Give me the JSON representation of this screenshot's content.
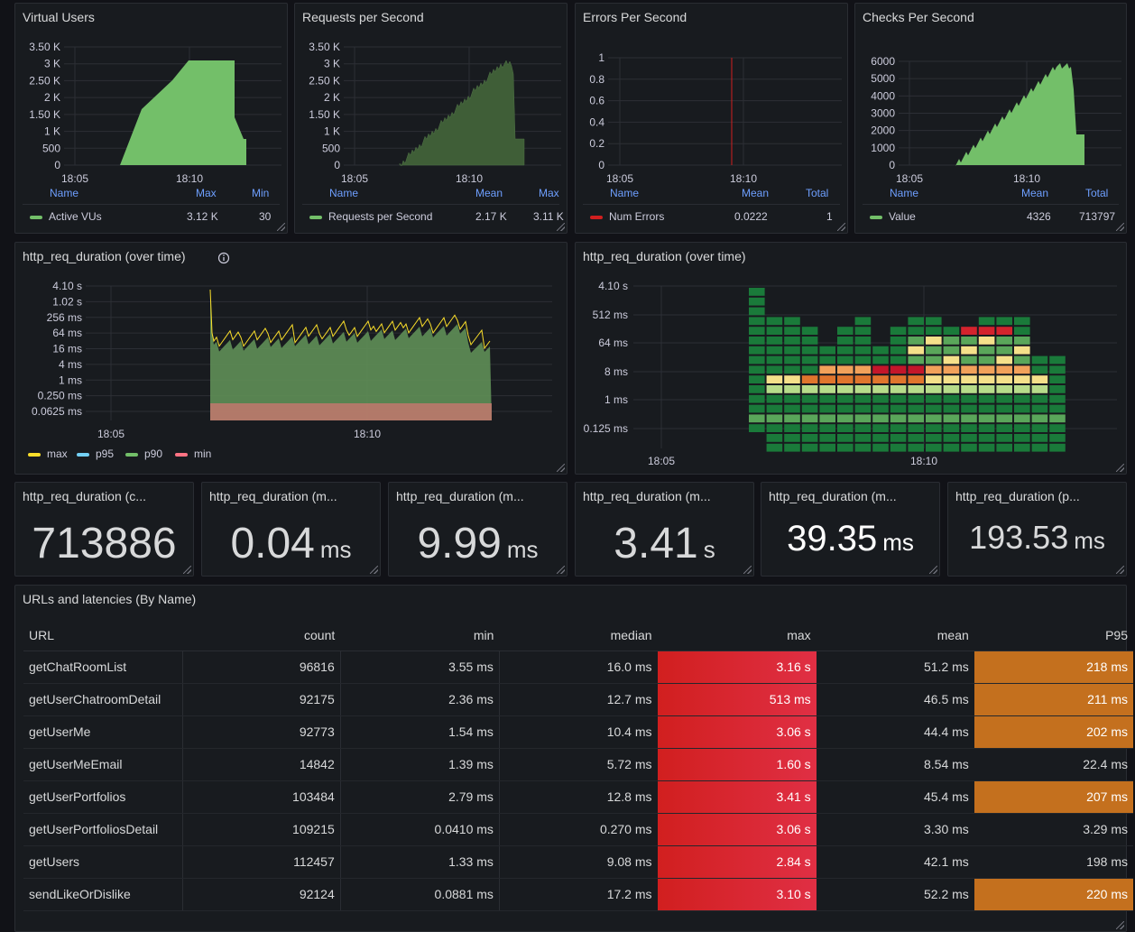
{
  "colors": {
    "green": "#73bf69",
    "dark_green": "#3f5e37",
    "red": "#d11f1f",
    "orange": "#c4701e",
    "yellow": "#f2cc0c",
    "cyan": "#73d0f5",
    "salmon": "#ff7383"
  },
  "virtual_users": {
    "title": "Virtual Users",
    "y_ticks": [
      "3.50 K",
      "3 K",
      "2.50 K",
      "2 K",
      "1.50 K",
      "1 K",
      "500",
      "0"
    ],
    "x_ticks": [
      "18:05",
      "18:10"
    ],
    "legend_headers": [
      "Name",
      "Max",
      "Min"
    ],
    "series": [
      {
        "name": "Active VUs",
        "max": "3.12 K",
        "min": "30"
      }
    ]
  },
  "requests_per_second": {
    "title": "Requests per Second",
    "y_ticks": [
      "3.50 K",
      "3 K",
      "2.50 K",
      "2 K",
      "1.50 K",
      "1 K",
      "500",
      "0"
    ],
    "x_ticks": [
      "18:05",
      "18:10"
    ],
    "legend_headers": [
      "Name",
      "Mean",
      "Max"
    ],
    "series": [
      {
        "name": "Requests per Second",
        "mean": "2.17 K",
        "max": "3.11 K"
      }
    ]
  },
  "errors_per_second": {
    "title": "Errors Per Second",
    "y_ticks": [
      "1",
      "0.8",
      "0.6",
      "0.4",
      "0.2",
      "0"
    ],
    "x_ticks": [
      "18:05",
      "18:10"
    ],
    "legend_headers": [
      "Name",
      "Mean",
      "Total"
    ],
    "series": [
      {
        "name": "Num Errors",
        "mean": "0.0222",
        "total": "1"
      }
    ]
  },
  "checks_per_second": {
    "title": "Checks Per Second",
    "y_ticks": [
      "6000",
      "5000",
      "4000",
      "3000",
      "2000",
      "1000",
      "0"
    ],
    "x_ticks": [
      "18:05",
      "18:10"
    ],
    "legend_headers": [
      "Name",
      "Mean",
      "Total"
    ],
    "series": [
      {
        "name": "Value",
        "mean": "4326",
        "total": "713797"
      }
    ]
  },
  "duration_timeseries": {
    "title": "http_req_duration (over time)",
    "info_icon": "info-circle-icon",
    "y_ticks": [
      "4.10 s",
      "1.02 s",
      "256 ms",
      "64 ms",
      "16 ms",
      "4 ms",
      "1 ms",
      "0.250 ms",
      "0.0625 ms"
    ],
    "x_ticks": [
      "18:05",
      "18:10"
    ],
    "legend": [
      "max",
      "p95",
      "p90",
      "min"
    ]
  },
  "duration_heatmap": {
    "title": "http_req_duration (over time)",
    "y_ticks": [
      "4.10 s",
      "512 ms",
      "64 ms",
      "8 ms",
      "1 ms",
      "0.125 ms"
    ],
    "x_ticks": [
      "18:05",
      "18:10"
    ]
  },
  "stats": [
    {
      "title": "http_req_duration (c...",
      "value": "713886",
      "unit": ""
    },
    {
      "title": "http_req_duration (m...",
      "value": "0.04",
      "unit": "ms"
    },
    {
      "title": "http_req_duration (m...",
      "value": "9.99",
      "unit": "ms"
    },
    {
      "title": "http_req_duration (m...",
      "value": "3.41",
      "unit": "s"
    },
    {
      "title": "http_req_duration (m...",
      "value": "39.35",
      "unit": "ms"
    },
    {
      "title": "http_req_duration (p...",
      "value": "193.53",
      "unit": "ms"
    }
  ],
  "table": {
    "title": "URLs and latencies (By Name)",
    "headers": [
      "URL",
      "count",
      "min",
      "median",
      "max",
      "mean",
      "P95"
    ],
    "rows": [
      [
        "getChatRoomList",
        "96816",
        "3.55 ms",
        "16.0 ms",
        "3.16 s",
        "51.2 ms",
        "218 ms"
      ],
      [
        "getUserChatroomDetail",
        "92175",
        "2.36 ms",
        "12.7 ms",
        "513 ms",
        "46.5 ms",
        "211 ms"
      ],
      [
        "getUserMe",
        "92773",
        "1.54 ms",
        "10.4 ms",
        "3.06 s",
        "44.4 ms",
        "202 ms"
      ],
      [
        "getUserMeEmail",
        "14842",
        "1.39 ms",
        "5.72 ms",
        "1.60 s",
        "8.54 ms",
        "22.4 ms"
      ],
      [
        "getUserPortfolios",
        "103484",
        "2.79 ms",
        "12.8 ms",
        "3.41 s",
        "45.4 ms",
        "207 ms"
      ],
      [
        "getUserPortfoliosDetail",
        "109215",
        "0.0410 ms",
        "0.270 ms",
        "3.06 s",
        "3.30 ms",
        "3.29 ms"
      ],
      [
        "getUsers",
        "112457",
        "1.33 ms",
        "9.08 ms",
        "2.84 s",
        "42.1 ms",
        "198 ms"
      ],
      [
        "sendLikeOrDislike",
        "92124",
        "0.0881 ms",
        "17.2 ms",
        "3.10 s",
        "52.2 ms",
        "220 ms"
      ]
    ],
    "p95_highlight": [
      true,
      true,
      true,
      false,
      true,
      false,
      false,
      true
    ]
  }
}
